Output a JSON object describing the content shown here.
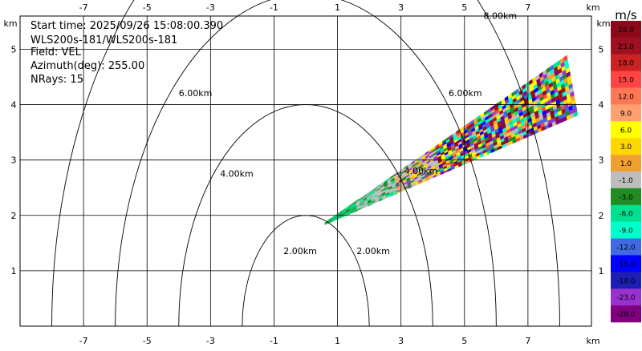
{
  "info": {
    "start_time": "Start time: 2025/09/26 15:08:00.390",
    "instrument": "WLS200s-181/WLS200s-181",
    "field": "Field: VEL",
    "azimuth": "Azimuth(deg): 255.00",
    "nrays": "NRays: 15"
  },
  "axes": {
    "x_unit": "km",
    "y_unit": "km",
    "xlim": [
      -9,
      9
    ],
    "ylim": [
      0,
      5.6
    ],
    "x_ticks": [
      -7,
      -5,
      -3,
      -1,
      1,
      3,
      5,
      7
    ],
    "y_ticks": [
      1,
      2,
      3,
      4,
      5
    ],
    "x_tick_labels": [
      "-7",
      "-5",
      "-3",
      "-1",
      "1",
      "3",
      "5",
      "7"
    ],
    "y_tick_labels": [
      "1",
      "2",
      "3",
      "4",
      "5"
    ],
    "grid": true
  },
  "range_rings": {
    "center": [
      0,
      0
    ],
    "radii_km": [
      2,
      4,
      6,
      8
    ],
    "labels": [
      "2.00km",
      "4.00km",
      "6.00km",
      "8.00km"
    ],
    "label_positions": [
      {
        "text": "2.00km",
        "x": -0.7,
        "y": 1.3
      },
      {
        "text": "2.00km",
        "x": 1.6,
        "y": 1.3
      },
      {
        "text": "4.00km",
        "x": -2.7,
        "y": 2.7
      },
      {
        "text": "4.00km",
        "x": 3.1,
        "y": 2.75
      },
      {
        "text": "6.00km",
        "x": -4.0,
        "y": 4.15
      },
      {
        "text": "6.00km",
        "x": 4.5,
        "y": 4.15
      },
      {
        "text": "8.00km",
        "x": 5.6,
        "y": 5.55
      }
    ]
  },
  "colorbar": {
    "unit": "m/s",
    "labels": [
      "28.0",
      "23.0",
      "18.0",
      "15.0",
      "12.0",
      "9.0",
      "6.0",
      "3.0",
      "1.0",
      "-1.0",
      "-3.0",
      "-6.0",
      "-9.0",
      "-12.0",
      "-15.0",
      "-18.0",
      "-23.0",
      "-28.0"
    ],
    "colors": [
      "#8b0a1a",
      "#a01020",
      "#cc2222",
      "#ff4444",
      "#ff7755",
      "#ffa070",
      "#ffff00",
      "#ffd700",
      "#f0a030",
      "#bdbdbd",
      "#228b22",
      "#00e090",
      "#00ffcc",
      "#4169e1",
      "#0000ff",
      "#1e1eb4",
      "#9932cc",
      "#800080"
    ]
  },
  "sector": {
    "origin_km": [
      0.6,
      1.85
    ],
    "end_km": [
      8.4,
      4.35
    ],
    "half_width_km_end": 0.55,
    "dominant_colors": [
      "#bdbdbd",
      "#228b22",
      "#00e090",
      "#9932cc",
      "#ff4444",
      "#ffd700",
      "#0000ff",
      "#8b0a1a",
      "#ffff00",
      "#00ffcc",
      "#a01020",
      "#4169e1",
      "#800080",
      "#f0a030"
    ]
  }
}
